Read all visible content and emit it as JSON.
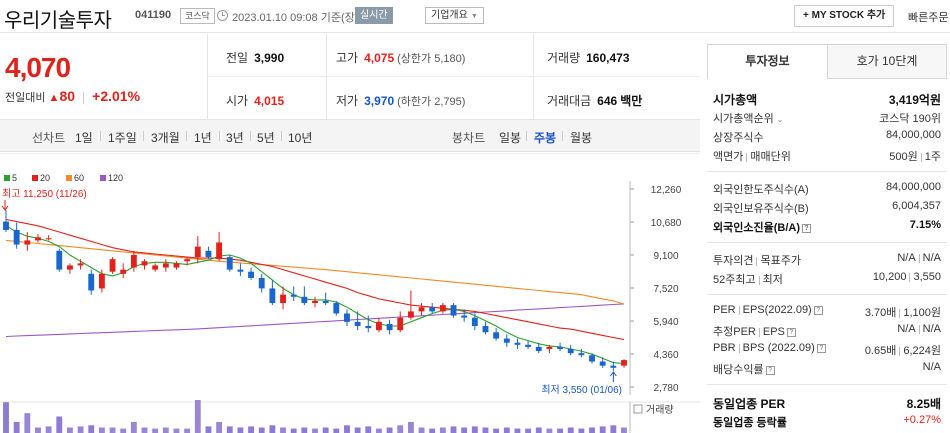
{
  "header": {
    "company_name": "우리기술투자",
    "code": "041190",
    "market": "코스닥",
    "datetime": "2023.01.10 09:08",
    "basis": "기준(장중)",
    "live_label": "실시간",
    "company_info_label": "기업개요",
    "mystock_label": "+ MY STOCK 추가",
    "fast_order_label": "빠른주문"
  },
  "summary": {
    "current_price": "4,070",
    "change_label": "전일대비",
    "change_amount": "80",
    "change_rate": "+2.01%",
    "prev_close_label": "전일",
    "prev_close": "3,990",
    "high_label": "고가",
    "high": "4,075",
    "upper_limit": "(상한가 5,180)",
    "volume_label": "거래량",
    "volume": "160,473",
    "open_label": "시가",
    "open": "4,015",
    "low_label": "저가",
    "low": "3,970",
    "lower_limit": "(하한가 2,795)",
    "amount_label": "거래대금",
    "amount": "646",
    "amount_unit": "백만"
  },
  "chart_tabs": {
    "line_label": "선차트",
    "periods": [
      "1일",
      "1주일",
      "3개월",
      "1년",
      "3년",
      "5년",
      "10년"
    ],
    "candle_label": "봉차트",
    "candle_periods": [
      "일봉",
      "주봉",
      "월봉"
    ],
    "active_candle": "주봉"
  },
  "chart_data": {
    "type": "candlestick",
    "legend": [
      {
        "name": "5",
        "color": "#2ca02c"
      },
      {
        "name": "20",
        "color": "#e0221c"
      },
      {
        "name": "60",
        "color": "#f08a24"
      },
      {
        "name": "120",
        "color": "#9b59c6"
      }
    ],
    "y_ticks": [
      "12,260",
      "10,680",
      "9,100",
      "7,520",
      "5,940",
      "4,360",
      "2,780"
    ],
    "ylim": [
      2780,
      12260
    ],
    "high_annotation": "최고 11,250 (11/26)",
    "low_annotation": "최저 3,550 (01/06)",
    "volume_label": "거래량",
    "candles": [
      {
        "o": 10700,
        "h": 11250,
        "l": 10200,
        "c": 10300
      },
      {
        "o": 10300,
        "h": 10650,
        "l": 9400,
        "c": 9600
      },
      {
        "o": 9600,
        "h": 10200,
        "l": 9300,
        "c": 9800
      },
      {
        "o": 9800,
        "h": 10100,
        "l": 9700,
        "c": 9950
      },
      {
        "o": 9900,
        "h": 10050,
        "l": 9800,
        "c": 9900
      },
      {
        "o": 9300,
        "h": 9400,
        "l": 8300,
        "c": 8400
      },
      {
        "o": 8400,
        "h": 8700,
        "l": 8200,
        "c": 8600
      },
      {
        "o": 8600,
        "h": 8900,
        "l": 8400,
        "c": 8700
      },
      {
        "o": 8200,
        "h": 8400,
        "l": 7200,
        "c": 7400
      },
      {
        "o": 7500,
        "h": 8400,
        "l": 7300,
        "c": 8200
      },
      {
        "o": 8300,
        "h": 9000,
        "l": 8200,
        "c": 8900
      },
      {
        "o": 8200,
        "h": 8700,
        "l": 8000,
        "c": 8400
      },
      {
        "o": 8500,
        "h": 9300,
        "l": 8300,
        "c": 9100
      },
      {
        "o": 8600,
        "h": 8900,
        "l": 8400,
        "c": 8800
      },
      {
        "o": 8400,
        "h": 8700,
        "l": 8300,
        "c": 8600
      },
      {
        "o": 8500,
        "h": 8900,
        "l": 8300,
        "c": 8700
      },
      {
        "o": 8500,
        "h": 8800,
        "l": 8400,
        "c": 8700
      },
      {
        "o": 8800,
        "h": 9000,
        "l": 8600,
        "c": 8900
      },
      {
        "o": 9000,
        "h": 10000,
        "l": 8700,
        "c": 9500
      },
      {
        "o": 9300,
        "h": 9500,
        "l": 8900,
        "c": 9000
      },
      {
        "o": 8900,
        "h": 10200,
        "l": 8800,
        "c": 9700
      },
      {
        "o": 9000,
        "h": 9100,
        "l": 8300,
        "c": 8400
      },
      {
        "o": 8400,
        "h": 8700,
        "l": 8100,
        "c": 8300
      },
      {
        "o": 8300,
        "h": 8500,
        "l": 7900,
        "c": 8000
      },
      {
        "o": 8000,
        "h": 8200,
        "l": 7300,
        "c": 7500
      },
      {
        "o": 7500,
        "h": 7900,
        "l": 6700,
        "c": 6800
      },
      {
        "o": 6800,
        "h": 7600,
        "l": 6500,
        "c": 7200
      },
      {
        "o": 7200,
        "h": 7600,
        "l": 6900,
        "c": 7100
      },
      {
        "o": 7100,
        "h": 7600,
        "l": 6700,
        "c": 6800
      },
      {
        "o": 6800,
        "h": 7100,
        "l": 6600,
        "c": 6900
      },
      {
        "o": 6900,
        "h": 7300,
        "l": 6700,
        "c": 6800
      },
      {
        "o": 6800,
        "h": 6900,
        "l": 6200,
        "c": 6300
      },
      {
        "o": 6300,
        "h": 6500,
        "l": 5700,
        "c": 5900
      },
      {
        "o": 5900,
        "h": 6400,
        "l": 5500,
        "c": 5700
      },
      {
        "o": 5700,
        "h": 6200,
        "l": 5400,
        "c": 5600
      },
      {
        "o": 5500,
        "h": 6100,
        "l": 5400,
        "c": 5900
      },
      {
        "o": 5800,
        "h": 6000,
        "l": 5300,
        "c": 5500
      },
      {
        "o": 5500,
        "h": 6400,
        "l": 5400,
        "c": 6100
      },
      {
        "o": 6100,
        "h": 7400,
        "l": 6000,
        "c": 6400
      },
      {
        "o": 6400,
        "h": 6800,
        "l": 6200,
        "c": 6600
      },
      {
        "o": 6600,
        "h": 6800,
        "l": 6300,
        "c": 6400
      },
      {
        "o": 6400,
        "h": 6800,
        "l": 6300,
        "c": 6700
      },
      {
        "o": 6700,
        "h": 6800,
        "l": 6100,
        "c": 6200
      },
      {
        "o": 6200,
        "h": 6500,
        "l": 5900,
        "c": 6100
      },
      {
        "o": 6100,
        "h": 6300,
        "l": 5500,
        "c": 5700
      },
      {
        "o": 5700,
        "h": 5900,
        "l": 5300,
        "c": 5400
      },
      {
        "o": 5400,
        "h": 5600,
        "l": 5000,
        "c": 5100
      },
      {
        "o": 5100,
        "h": 5300,
        "l": 4700,
        "c": 4900
      },
      {
        "o": 4900,
        "h": 5100,
        "l": 4600,
        "c": 4800
      },
      {
        "o": 4800,
        "h": 5000,
        "l": 4600,
        "c": 4700
      },
      {
        "o": 4700,
        "h": 4900,
        "l": 4400,
        "c": 4500
      },
      {
        "o": 4600,
        "h": 4800,
        "l": 4400,
        "c": 4700
      },
      {
        "o": 4700,
        "h": 4900,
        "l": 4500,
        "c": 4600
      },
      {
        "o": 4600,
        "h": 4800,
        "l": 4300,
        "c": 4400
      },
      {
        "o": 4400,
        "h": 4600,
        "l": 4200,
        "c": 4300
      },
      {
        "o": 4300,
        "h": 4400,
        "l": 3900,
        "c": 4000
      },
      {
        "o": 4000,
        "h": 4200,
        "l": 3700,
        "c": 3800
      },
      {
        "o": 3800,
        "h": 4000,
        "l": 3550,
        "c": 3700
      },
      {
        "o": 3800,
        "h": 4100,
        "l": 3700,
        "c": 4070
      }
    ],
    "volume": [
      0.28,
      0.1,
      0.18,
      0.05,
      0.06,
      0.15,
      0.05,
      0.06,
      0.07,
      0.05,
      0.05,
      0.04,
      0.1,
      0.05,
      0.04,
      0.05,
      0.04,
      0.04,
      0.3,
      0.06,
      0.1,
      0.06,
      0.05,
      0.06,
      0.05,
      0.07,
      0.05,
      0.04,
      0.05,
      0.04,
      0.05,
      0.04,
      0.07,
      0.05,
      0.06,
      0.04,
      0.05,
      0.07,
      0.1,
      0.05,
      0.04,
      0.05,
      0.06,
      0.05,
      0.06,
      0.05,
      0.04,
      0.05,
      0.04,
      0.04,
      0.05,
      0.04,
      0.04,
      0.05,
      0.04,
      0.05,
      0.06,
      0.07,
      0.05
    ],
    "ma5": [
      10500,
      10200,
      10000,
      9900,
      9750,
      9500,
      9100,
      8800,
      8500,
      8200,
      8100,
      8250,
      8550,
      8700,
      8750,
      8750,
      8700,
      8650,
      8750,
      8850,
      9050,
      9100,
      8950,
      8700,
      8300,
      7900,
      7500,
      7200,
      7000,
      6950,
      6950,
      6850,
      6600,
      6300,
      6000,
      5800,
      5700,
      5700,
      5900,
      6100,
      6300,
      6450,
      6500,
      6400,
      6200,
      5950,
      5700,
      5400,
      5150,
      5000,
      4850,
      4750,
      4700,
      4600,
      4500,
      4350,
      4150,
      3950,
      3900
    ],
    "ma20": [
      10800,
      10700,
      10600,
      10500,
      10350,
      10200,
      10050,
      9900,
      9750,
      9600,
      9450,
      9350,
      9250,
      9200,
      9150,
      9100,
      9050,
      9000,
      8950,
      8950,
      8950,
      8900,
      8850,
      8750,
      8650,
      8550,
      8400,
      8250,
      8100,
      7950,
      7800,
      7650,
      7500,
      7300,
      7150,
      7000,
      6900,
      6800,
      6700,
      6650,
      6600,
      6550,
      6500,
      6450,
      6400,
      6300,
      6200,
      6100,
      6000,
      5900,
      5800,
      5700,
      5600,
      5550,
      5450,
      5350,
      5250,
      5150,
      5050
    ],
    "ma60": [
      9800,
      9750,
      9700,
      9650,
      9600,
      9550,
      9500,
      9450,
      9400,
      9350,
      9300,
      9250,
      9200,
      9150,
      9100,
      9050,
      9000,
      8950,
      8900,
      8850,
      8800,
      8760,
      8720,
      8680,
      8640,
      8600,
      8560,
      8520,
      8480,
      8440,
      8400,
      8350,
      8300,
      8250,
      8200,
      8150,
      8100,
      8050,
      8000,
      7950,
      7900,
      7850,
      7800,
      7750,
      7700,
      7650,
      7600,
      7550,
      7500,
      7450,
      7400,
      7350,
      7300,
      7250,
      7200,
      7100,
      7000,
      6900,
      6750
    ],
    "ma120": [
      5200,
      5220,
      5240,
      5260,
      5280,
      5300,
      5320,
      5340,
      5360,
      5380,
      5400,
      5420,
      5440,
      5460,
      5480,
      5500,
      5520,
      5540,
      5560,
      5590,
      5620,
      5650,
      5680,
      5710,
      5740,
      5770,
      5800,
      5830,
      5860,
      5890,
      5920,
      5950,
      5980,
      6010,
      6040,
      6070,
      6100,
      6130,
      6160,
      6190,
      6220,
      6250,
      6280,
      6310,
      6340,
      6370,
      6400,
      6430,
      6460,
      6490,
      6520,
      6550,
      6580,
      6610,
      6640,
      6670,
      6700,
      6730,
      6760
    ]
  },
  "side_panel": {
    "tab_invest": "투자정보",
    "tab_quote": "호가 10단계",
    "market_cap_label": "시가총액",
    "market_cap": "3,419억원",
    "market_cap_rank_label": "시가총액순위",
    "market_cap_rank": "코스닥 190위",
    "shares_label": "상장주식수",
    "shares": "84,000,000",
    "par_label": "액면가",
    "trade_unit_label": "매매단위",
    "par": "500원",
    "trade_unit": "1주",
    "foreign_limit_label": "외국인한도주식수(A)",
    "foreign_limit": "84,000,000",
    "foreign_hold_label": "외국인보유주식수(B)",
    "foreign_hold": "6,004,357",
    "foreign_ratio_label": "외국인소진율(B/A)",
    "foreign_ratio": "7.15%",
    "opinion_label": "투자의견",
    "target_label": "목표주가",
    "opinion": "N/A",
    "target": "N/A",
    "week52_label": "52주최고",
    "week52_low_label": "최저",
    "week52_high": "10,200",
    "week52_low": "3,550",
    "per_label": "PER",
    "eps_label": "EPS(2022.09)",
    "per": "3.70배",
    "eps": "1,100원",
    "est_per_label": "추정PER",
    "est_eps_label": "EPS",
    "est_per": "N/A",
    "est_eps": "N/A",
    "pbr_label": "PBR",
    "bps_label": "BPS (2022.09)",
    "pbr": "0.65배",
    "bps": "6,224원",
    "dividend_label": "배당수익률",
    "dividend": "N/A",
    "sector_per_label": "동일업종 PER",
    "sector_per": "8.25배",
    "sector_rate_label": "동일업종 등락률",
    "sector_rate": "+0.27%"
  }
}
